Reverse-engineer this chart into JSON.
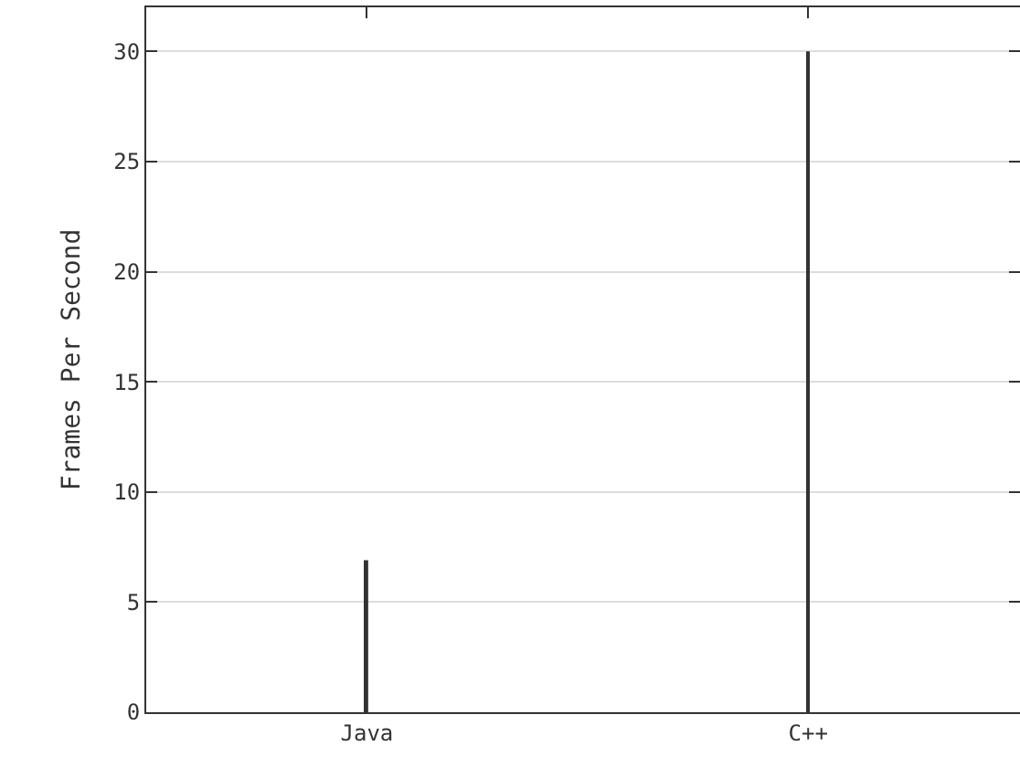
{
  "chart_data": {
    "type": "bar",
    "ylabel": "Frames Per Second",
    "categories": [
      "Java",
      "C++"
    ],
    "values": [
      6.9,
      30
    ],
    "color": "#333333",
    "ylim": [
      0,
      32
    ],
    "yticks": [
      0,
      5,
      10,
      15,
      20,
      25,
      30
    ],
    "grid": "y"
  }
}
